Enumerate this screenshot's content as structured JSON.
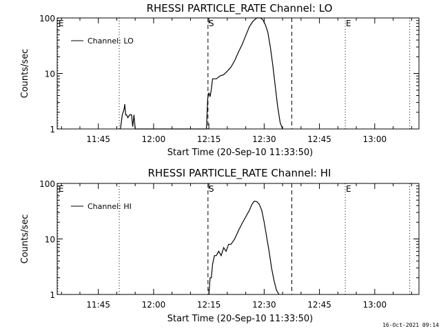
{
  "stamp": "16-Oct-2021 09:14",
  "chart_data": [
    {
      "type": "line",
      "title": "RHESSI PARTICLE_RATE Channel: LO",
      "xlabel": "Start Time (20-Sep-10 11:33:50)",
      "ylabel": "Counts/sec",
      "yscale": "log",
      "ylim": [
        1,
        100
      ],
      "xlim": [
        "11:33:50",
        "13:12:00"
      ],
      "xticks": [
        "11:45",
        "12:00",
        "12:15",
        "12:30",
        "12:45",
        "13:00"
      ],
      "yticks": [
        "1",
        "10",
        "100"
      ],
      "legend": "top-left",
      "grid": false,
      "series": [
        {
          "name": "Channel: LO",
          "x": [
            "11:51:00",
            "11:51:30",
            "11:52:00",
            "11:52:10",
            "11:52:25",
            "11:52:40",
            "11:53:00",
            "11:53:30",
            "11:54:00",
            "11:54:20",
            "11:54:40",
            "11:55:00",
            "12:14:20",
            "12:14:40",
            "12:15:00",
            "12:15:20",
            "12:15:40",
            "12:16:00",
            "12:16:30",
            "12:17:00",
            "12:18:00",
            "12:19:00",
            "12:20:00",
            "12:21:00",
            "12:22:00",
            "12:23:00",
            "12:24:00",
            "12:25:00",
            "12:26:00",
            "12:27:00",
            "12:28:00",
            "12:29:00",
            "12:29:40",
            "12:30:20",
            "12:31:00",
            "12:31:40",
            "12:32:20",
            "12:33:00",
            "12:33:40",
            "12:34:20",
            "12:35:00"
          ],
          "y": [
            1,
            1.8,
            2.3,
            2.8,
            1.8,
            1.8,
            1.6,
            1.8,
            1.8,
            1.1,
            1.8,
            1,
            1,
            3.5,
            4.5,
            3.8,
            5.2,
            8,
            8,
            8,
            9,
            9.5,
            11,
            13,
            17,
            24,
            33,
            48,
            70,
            88,
            100,
            100,
            92,
            75,
            55,
            30,
            14,
            6,
            2.5,
            1.3,
            1
          ]
        }
      ],
      "markers": [
        {
          "label": "E",
          "x": "11:33:50",
          "style": "dotted"
        },
        {
          "label": "",
          "x": "11:50:40",
          "style": "dotted"
        },
        {
          "label": "S",
          "x": "12:14:45",
          "style": "dashed"
        },
        {
          "label": "",
          "x": "12:37:30",
          "style": "dashed"
        },
        {
          "label": "E",
          "x": "12:52:00",
          "style": "dotted"
        },
        {
          "label": "",
          "x": "13:09:30",
          "style": "dotted"
        }
      ]
    },
    {
      "type": "line",
      "title": "RHESSI PARTICLE_RATE Channel: HI",
      "xlabel": "Start Time (20-Sep-10 11:33:50)",
      "ylabel": "Counts/sec",
      "yscale": "log",
      "ylim": [
        1,
        100
      ],
      "xlim": [
        "11:33:50",
        "13:12:00"
      ],
      "xticks": [
        "11:45",
        "12:00",
        "12:15",
        "12:30",
        "12:45",
        "13:00"
      ],
      "yticks": [
        "1",
        "10",
        "100"
      ],
      "legend": "top-left",
      "grid": false,
      "series": [
        {
          "name": "Channel: HI",
          "x": [
            "12:15:00",
            "12:15:20",
            "12:15:40",
            "12:16:00",
            "12:16:30",
            "12:17:00",
            "12:17:40",
            "12:18:20",
            "12:19:00",
            "12:19:40",
            "12:20:20",
            "12:21:00",
            "12:22:00",
            "12:23:00",
            "12:24:00",
            "12:25:00",
            "12:26:00",
            "12:26:40",
            "12:27:20",
            "12:28:00",
            "12:28:40",
            "12:29:20",
            "12:30:00",
            "12:30:40",
            "12:31:20",
            "12:32:00",
            "12:32:40",
            "12:33:20",
            "12:34:00"
          ],
          "y": [
            1,
            2,
            2,
            3.5,
            5,
            5,
            6,
            5,
            7,
            6,
            8,
            8,
            10,
            14,
            19,
            25,
            33,
            42,
            48,
            47,
            42,
            33,
            20,
            11,
            6,
            3,
            1.8,
            1.2,
            1
          ]
        }
      ],
      "markers": [
        {
          "label": "E",
          "x": "11:33:50",
          "style": "dotted"
        },
        {
          "label": "",
          "x": "11:50:40",
          "style": "dotted"
        },
        {
          "label": "S",
          "x": "12:14:45",
          "style": "dashed"
        },
        {
          "label": "",
          "x": "12:37:30",
          "style": "dashed"
        },
        {
          "label": "E",
          "x": "12:52:00",
          "style": "dotted"
        },
        {
          "label": "",
          "x": "13:09:30",
          "style": "dotted"
        }
      ]
    }
  ]
}
